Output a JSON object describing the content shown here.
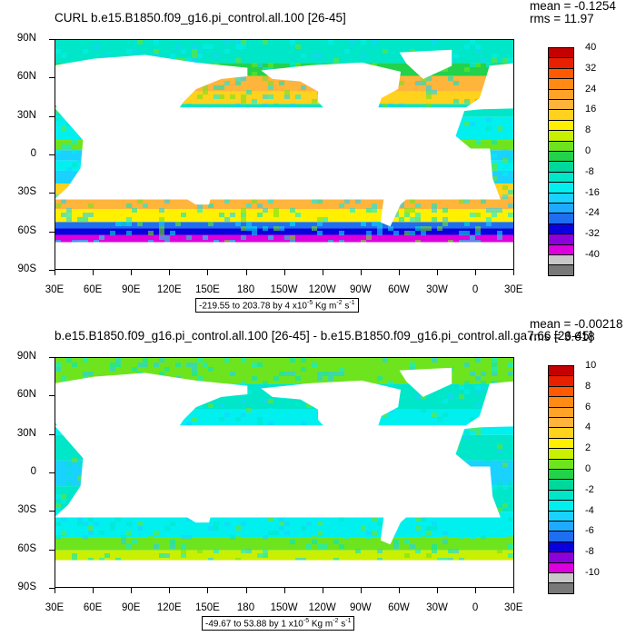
{
  "panels": [
    {
      "title": "CURL b.e15.B1850.f09_g16.pi_control.all.100 [26-45]",
      "mean_label": "mean = -0.1254",
      "rms_label": "rms = 11.97",
      "range_text": "-219.55 to 203.78 by 4 x10",
      "range_unit": "Kg m",
      "legend_labels": [
        "40",
        "32",
        "24",
        "16",
        "8",
        "0",
        "-8",
        "-16",
        "-24",
        "-32",
        "-40"
      ]
    },
    {
      "title": "b.e15.B1850.f09_g16.pi_control.all.100 [26-45] - b.e15.B1850.f09_g16.pi_control.all.ga7.66 [26-45]",
      "mean_label": "mean = -0.00218",
      "rms_label": "rms = 3.618",
      "range_text": "-49.67 to 53.88 by 1 x10",
      "range_unit": "Kg m",
      "legend_labels": [
        "10",
        "8",
        "6",
        "4",
        "2",
        "0",
        "-2",
        "-4",
        "-6",
        "-8",
        "-10"
      ]
    }
  ],
  "exp_minus5": "-5",
  "exp_minus2": "-2",
  "exp_minus1": "-1",
  "unit_s": "s",
  "y_ticks": [
    "90N",
    "60N",
    "30N",
    "0",
    "30S",
    "60S",
    "90S"
  ],
  "x_ticks": [
    "30E",
    "60E",
    "90E",
    "120E",
    "150E",
    "180",
    "150W",
    "120W",
    "90W",
    "60W",
    "30W",
    "0",
    "30E"
  ],
  "chart_data": [
    {
      "type": "heatmap",
      "title": "CURL b.e15.B1850.f09_g16.pi_control.all.100 [26-45]",
      "annotations": [
        "mean = -0.1254",
        "rms = 11.97",
        "-219.55 to 203.78 by 4 x10-5 Kg m-2 s-1"
      ],
      "x_range": [
        "30E",
        "30E"
      ],
      "y_range": [
        "90S",
        "90N"
      ],
      "colorbar_levels": [
        -40,
        -36,
        -32,
        -28,
        -24,
        -20,
        -16,
        -12,
        -8,
        -4,
        0,
        4,
        8,
        12,
        16,
        20,
        24,
        28,
        32,
        36,
        40
      ],
      "colorbar_labels": [
        "40",
        "32",
        "24",
        "16",
        "8",
        "0",
        "-8",
        "-16",
        "-24",
        "-32",
        "-40"
      ]
    },
    {
      "type": "heatmap",
      "title": "b.e15.B1850.f09_g16.pi_control.all.100 [26-45] - b.e15.B1850.f09_g16.pi_control.all.ga7.66 [26-45]",
      "annotations": [
        "mean = -0.00218",
        "rms = 3.618",
        "-49.67 to 53.88 by 1 x10-5 Kg m-2 s-1"
      ],
      "x_range": [
        "30E",
        "30E"
      ],
      "y_range": [
        "90S",
        "90N"
      ],
      "colorbar_levels": [
        -10,
        -9,
        -8,
        -7,
        -6,
        -5,
        -4,
        -3,
        -2,
        -1,
        0,
        1,
        2,
        3,
        4,
        5,
        6,
        7,
        8,
        9,
        10
      ],
      "colorbar_labels": [
        "10",
        "8",
        "6",
        "4",
        "2",
        "0",
        "-2",
        "-4",
        "-6",
        "-8",
        "-10"
      ]
    }
  ],
  "colors": {
    "palette": [
      "#c40000",
      "#e82000",
      "#ff5a00",
      "#ff8a14",
      "#ffa228",
      "#ffb43c",
      "#ffd21e",
      "#fff000",
      "#c8f000",
      "#6ee41e",
      "#22d24a",
      "#00d79b",
      "#00e6c8",
      "#00f0f0",
      "#19d2ff",
      "#1eaaff",
      "#1e6ef0",
      "#0a00dc",
      "#8c00dc",
      "#dc00dc",
      "#c8c8c8",
      "#787878"
    ]
  }
}
